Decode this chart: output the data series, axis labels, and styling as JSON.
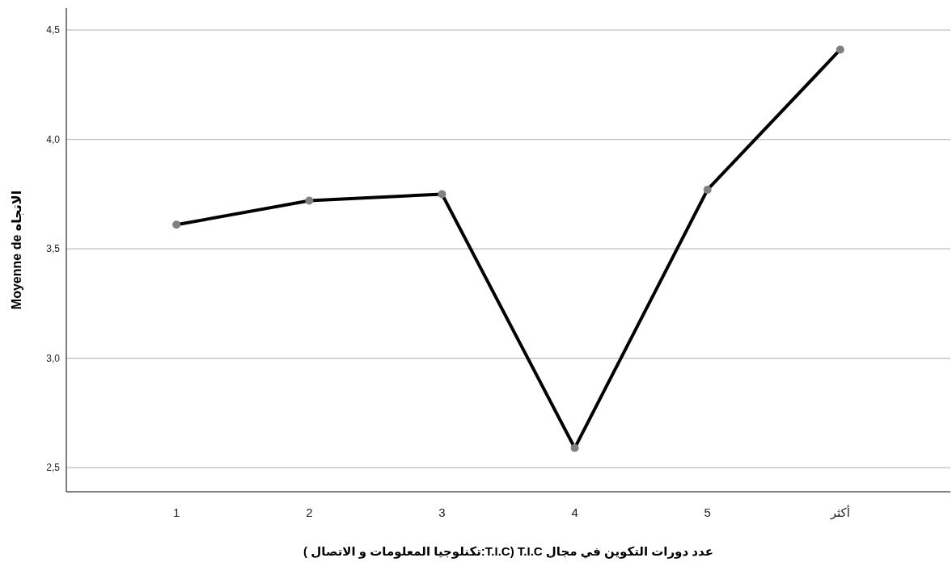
{
  "chart_data": {
    "type": "line",
    "xlabel": "عدد دورات التكوين في مجال T.I.C (T.I.C:تكنلوجيا المعلومات و الاتصال )",
    "ylabel": "Moyenne de الاتجاه",
    "categories": [
      "1",
      "2",
      "3",
      "4",
      "5",
      "أكثر"
    ],
    "series": [
      {
        "color": "#000000",
        "colors": [
          "#808080",
          "#808080",
          "#808080",
          "#808080",
          "#808080",
          "#808080"
        ],
        "values": [
          3.61,
          3.72,
          3.75,
          2.59,
          3.77,
          4.41
        ]
      }
    ],
    "ylim": [
      2.39,
      4.6
    ],
    "yticks": [
      {
        "value": 2.5,
        "label": "2,5"
      },
      {
        "value": 3.0,
        "label": "3,0"
      },
      {
        "value": 3.5,
        "label": "3,5"
      },
      {
        "value": 4.0,
        "label": "4,0"
      },
      {
        "value": 4.5,
        "label": "4,5"
      }
    ],
    "grid": "y",
    "marker": "circle"
  }
}
